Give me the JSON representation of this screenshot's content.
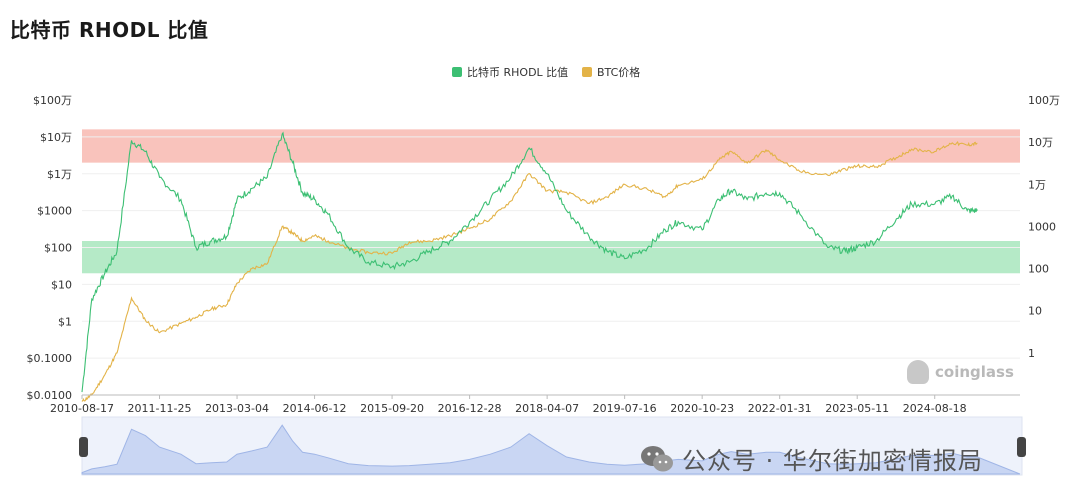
{
  "page": {
    "title": "比特币 RHODL 比值",
    "watermark": "coinglass",
    "wechat_text": "公众号 · 华尔街加密情报局"
  },
  "chart_data": {
    "type": "line",
    "title": "比特币 RHODL 比值",
    "legend": {
      "placement": "top-center"
    },
    "grid": true,
    "colors": {
      "rhodl": "#3cbf73",
      "btc": "#e3b348",
      "red_band": "#f8b8b0",
      "green_band": "#a8e6bd"
    },
    "x_ticks": [
      "2010-08-17",
      "2011-11-25",
      "2013-03-04",
      "2014-06-12",
      "2015-09-20",
      "2016-12-28",
      "2018-04-07",
      "2019-07-16",
      "2020-10-23",
      "2022-01-31",
      "2023-05-11",
      "2024-08-18"
    ],
    "left_axis": {
      "scale": "log",
      "ylim": [
        0.01,
        1000000
      ],
      "ticks": [
        "$0.0100",
        "$0.1000",
        "$1",
        "$10",
        "$100",
        "$1000",
        "$1万",
        "$10万",
        "$100万"
      ]
    },
    "right_axis": {
      "scale": "log",
      "ylim": [
        0.1,
        1000000
      ],
      "ticks": [
        "1",
        "10",
        "100",
        "1000",
        "1万",
        "10万",
        "100万"
      ]
    },
    "bands": [
      {
        "name": "red-zone",
        "axis": "left",
        "from": 20000,
        "to": 160000
      },
      {
        "name": "green-zone",
        "axis": "left",
        "from": 20,
        "to": 150
      }
    ],
    "series": [
      {
        "name": "比特币 RHODL 比值",
        "axis": "left",
        "x": [
          "2010-08-17",
          "2010-10-15",
          "2011-01-01",
          "2011-03-15",
          "2011-06-10",
          "2011-09-01",
          "2011-11-25",
          "2012-04-01",
          "2012-07-01",
          "2012-10-01",
          "2013-01-01",
          "2013-03-04",
          "2013-06-01",
          "2013-09-01",
          "2013-11-30",
          "2014-02-01",
          "2014-04-01",
          "2014-06-12",
          "2014-09-01",
          "2015-01-01",
          "2015-05-01",
          "2015-09-20",
          "2016-01-01",
          "2016-05-01",
          "2016-09-01",
          "2016-12-28",
          "2017-05-01",
          "2017-09-01",
          "2017-12-20",
          "2018-04-07",
          "2018-08-01",
          "2018-12-15",
          "2019-04-01",
          "2019-07-16",
          "2019-12-01",
          "2020-03-15",
          "2020-06-01",
          "2020-10-23",
          "2021-02-01",
          "2021-04-15",
          "2021-07-20",
          "2021-11-10",
          "2022-01-31",
          "2022-06-01",
          "2022-11-15",
          "2023-03-01",
          "2023-05-11",
          "2023-09-01",
          "2024-01-01",
          "2024-04-01",
          "2024-08-18",
          "2024-12-01",
          "2025-03-01",
          "2025-05-01"
        ],
        "values": [
          0.012,
          4,
          20,
          80,
          80000,
          40000,
          8000,
          2000,
          100,
          150,
          200,
          2000,
          4000,
          8000,
          120000,
          20000,
          3000,
          2000,
          800,
          100,
          40,
          30,
          40,
          80,
          150,
          500,
          2000,
          8000,
          50000,
          10000,
          1000,
          200,
          80,
          50,
          100,
          300,
          500,
          300,
          2000,
          3500,
          2000,
          3000,
          3000,
          800,
          100,
          80,
          100,
          150,
          600,
          1500,
          1500,
          2500,
          1000,
          1000
        ]
      },
      {
        "name": "BTC价格",
        "axis": "right",
        "x": [
          "2010-08-17",
          "2010-10-15",
          "2011-01-01",
          "2011-03-15",
          "2011-06-10",
          "2011-09-01",
          "2011-11-25",
          "2012-04-01",
          "2012-07-01",
          "2012-10-01",
          "2013-01-01",
          "2013-03-04",
          "2013-06-01",
          "2013-09-01",
          "2013-11-30",
          "2014-02-01",
          "2014-04-01",
          "2014-06-12",
          "2014-09-01",
          "2015-01-01",
          "2015-05-01",
          "2015-09-20",
          "2016-01-01",
          "2016-05-01",
          "2016-09-01",
          "2016-12-28",
          "2017-05-01",
          "2017-09-01",
          "2017-12-20",
          "2018-04-07",
          "2018-08-01",
          "2018-12-15",
          "2019-04-01",
          "2019-07-16",
          "2019-12-01",
          "2020-03-15",
          "2020-06-01",
          "2020-10-23",
          "2021-02-01",
          "2021-04-15",
          "2021-07-20",
          "2021-11-10",
          "2022-01-31",
          "2022-06-01",
          "2022-11-15",
          "2023-03-01",
          "2023-05-11",
          "2023-09-01",
          "2024-01-01",
          "2024-04-01",
          "2024-08-18",
          "2024-12-01",
          "2025-03-01",
          "2025-05-01"
        ],
        "values": [
          0.07,
          0.1,
          0.3,
          1,
          20,
          6,
          3,
          5,
          7,
          11,
          14,
          45,
          100,
          130,
          1000,
          700,
          450,
          600,
          450,
          300,
          240,
          230,
          430,
          450,
          600,
          900,
          1500,
          4000,
          18000,
          7000,
          6500,
          3500,
          5000,
          10000,
          7500,
          5000,
          9500,
          13000,
          38000,
          60000,
          32000,
          65000,
          38000,
          20000,
          16500,
          23000,
          27000,
          26000,
          43000,
          68000,
          60000,
          96000,
          85000,
          95000
        ]
      }
    ]
  }
}
